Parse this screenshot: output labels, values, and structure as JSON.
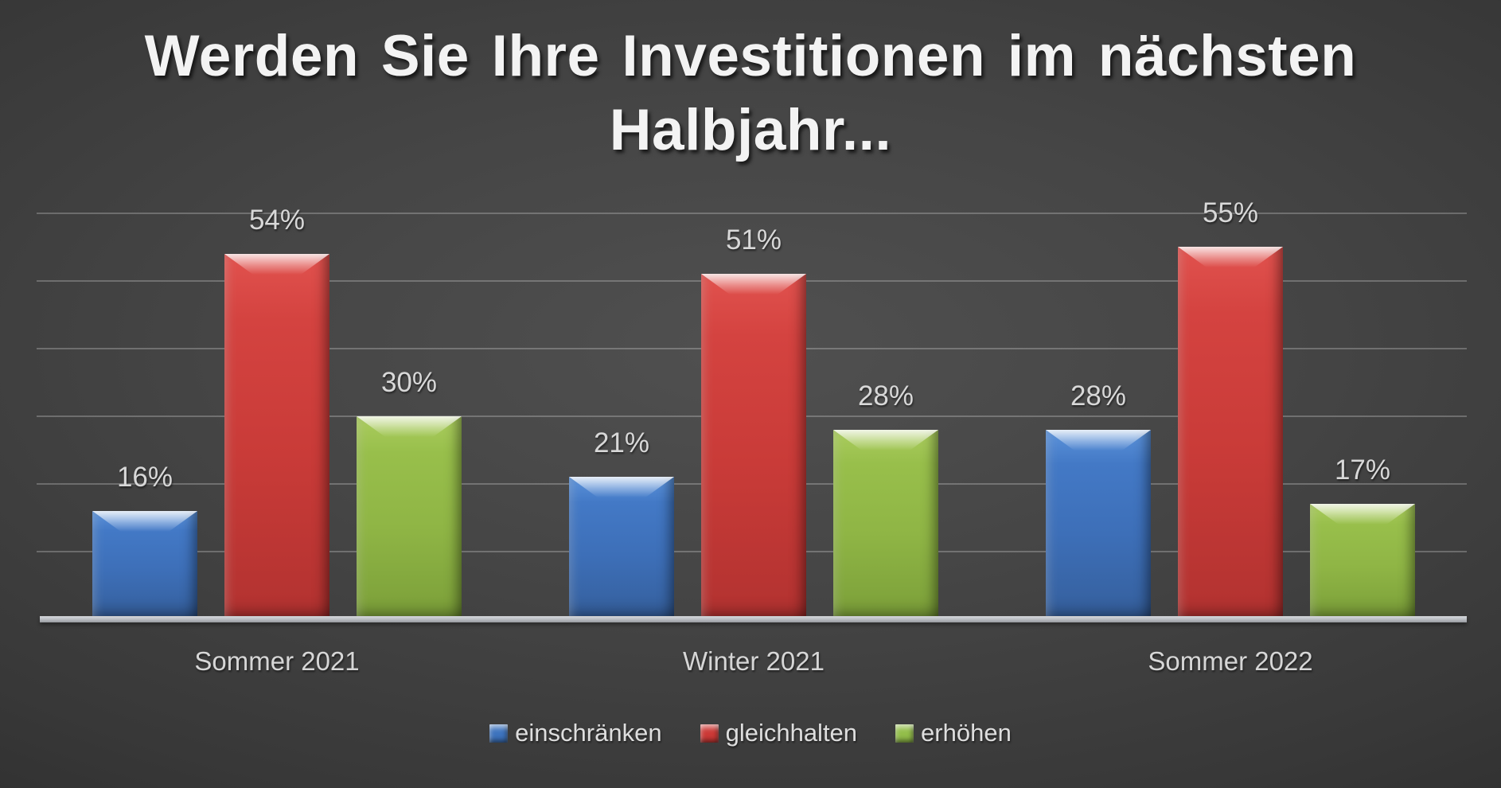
{
  "title": {
    "line1": "Werden Sie Ihre Investitionen im nächsten",
    "line2": "Halbjahr..."
  },
  "chart_data": {
    "type": "bar",
    "categories": [
      "Sommer 2021",
      "Winter 2021",
      "Sommer 2022"
    ],
    "series": [
      {
        "name": "einschränken",
        "color": "#3e74be",
        "values": [
          16,
          21,
          28
        ]
      },
      {
        "name": "gleichhalten",
        "color": "#cc3a37",
        "values": [
          54,
          51,
          55
        ]
      },
      {
        "name": "erhöhen",
        "color": "#93be4a",
        "values": [
          30,
          28,
          17
        ]
      }
    ],
    "value_suffix": "%",
    "data_labels": [
      "16%",
      "54%",
      "30%",
      "21%",
      "51%",
      "28%",
      "28%",
      "55%",
      "17%"
    ],
    "ylim": [
      0,
      60
    ],
    "grid_step": 10,
    "grid": true,
    "y_axis_labels_visible": false,
    "legend_position": "bottom",
    "background": "dark-gray-radial",
    "label_color": "#d8d8d8"
  },
  "legend": {
    "items": [
      {
        "label": "einschränken",
        "color": "#3e74be"
      },
      {
        "label": "gleichhalten",
        "color": "#cc3a37"
      },
      {
        "label": "erhöhen",
        "color": "#93be4a"
      }
    ]
  }
}
